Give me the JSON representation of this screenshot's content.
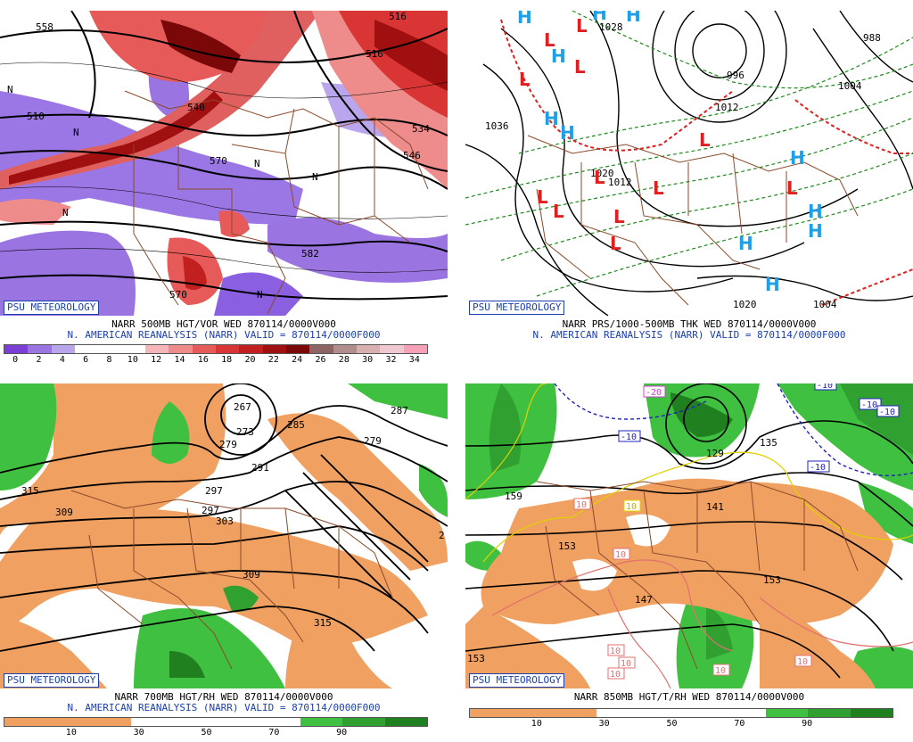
{
  "panels": [
    {
      "id": "500mb",
      "badge": "PSU METEOROLOGY",
      "title_line1": "NARR 500MB HGT/VOR WED 870114/0000V000",
      "title_line2": "N. AMERICAN REANALYSIS (NARR) VALID = 870114/0000F000",
      "colorbar": {
        "colors": [
          "#7b3fd6",
          "#9a74e0",
          "#b9a6ec",
          "#ffffff",
          "#ffffff",
          "#ffffff",
          "#f4b6b6",
          "#ee8c8c",
          "#e65a5a",
          "#d93535",
          "#c21f1f",
          "#a01010",
          "#7a0808",
          "#8c6464",
          "#b08e8e",
          "#d8b0b0",
          "#f0c8d0",
          "#f8a0b8"
        ],
        "labels": [
          "0",
          "2",
          "4",
          "6",
          "8",
          "10",
          "12",
          "14",
          "16",
          "18",
          "20",
          "22",
          "24",
          "26",
          "28",
          "30",
          "32",
          "34"
        ]
      },
      "contour_labels": [
        "558",
        "510",
        "540",
        "570",
        "516",
        "534",
        "546",
        "582",
        "570",
        "516"
      ],
      "feature_labels": [
        "N",
        "N",
        "N",
        "N",
        "N",
        "N"
      ]
    },
    {
      "id": "sfc",
      "badge": "PSU METEOROLOGY",
      "title_line1": "NARR PRS/1000-500MB THK WED 870114/0000V000",
      "title_line2": "N. AMERICAN REANALYSIS (NARR) VALID = 870114/0000F000",
      "contour_labels": [
        "1028",
        "1036",
        "996",
        "1020",
        "1012",
        "1004",
        "988",
        "1020",
        "1004",
        "1012"
      ],
      "highs": [
        "H",
        "H",
        "H",
        "H",
        "H",
        "H",
        "H",
        "H",
        "H",
        "H",
        "H"
      ],
      "lows": [
        "L",
        "L",
        "L",
        "L",
        "L",
        "L",
        "L",
        "L",
        "L",
        "L",
        "L",
        "L"
      ]
    },
    {
      "id": "700mb",
      "badge": "PSU METEOROLOGY",
      "title_line1": "NARR 700MB HGT/RH WED 870114/0000V000",
      "title_line2": "N. AMERICAN REANALYSIS (NARR) VALID = 870114/0000F000",
      "colorbar": {
        "colors": [
          "#f0a060",
          "#f0a060",
          "#f0a060",
          "#ffffff",
          "#ffffff",
          "#ffffff",
          "#ffffff",
          "#40c040",
          "#30a030",
          "#208020"
        ],
        "labels": [
          "10",
          "30",
          "50",
          "70",
          "90"
        ]
      },
      "contour_labels": [
        "267",
        "273",
        "285",
        "297",
        "279",
        "279",
        "291",
        "297",
        "303",
        "309",
        "315",
        "309",
        "315",
        "287",
        "2"
      ]
    },
    {
      "id": "850mb",
      "badge": "PSU METEOROLOGY",
      "title_line1": "NARR 850MB HGT/T/RH WED 870114/0000V000",
      "colorbar": {
        "colors": [
          "#f0a060",
          "#f0a060",
          "#f0a060",
          "#ffffff",
          "#ffffff",
          "#ffffff",
          "#ffffff",
          "#40c040",
          "#30a030",
          "#208020"
        ],
        "labels": [
          "10",
          "30",
          "50",
          "70",
          "90"
        ]
      },
      "contour_labels": [
        "159",
        "153",
        "147",
        "141",
        "153",
        "153",
        "129",
        "135"
      ],
      "temp_labels": [
        "-20",
        "-10",
        "-10",
        "-10",
        "-10",
        "-10",
        "10",
        "10",
        "10",
        "10",
        "10",
        "10",
        "10",
        "10"
      ]
    }
  ]
}
